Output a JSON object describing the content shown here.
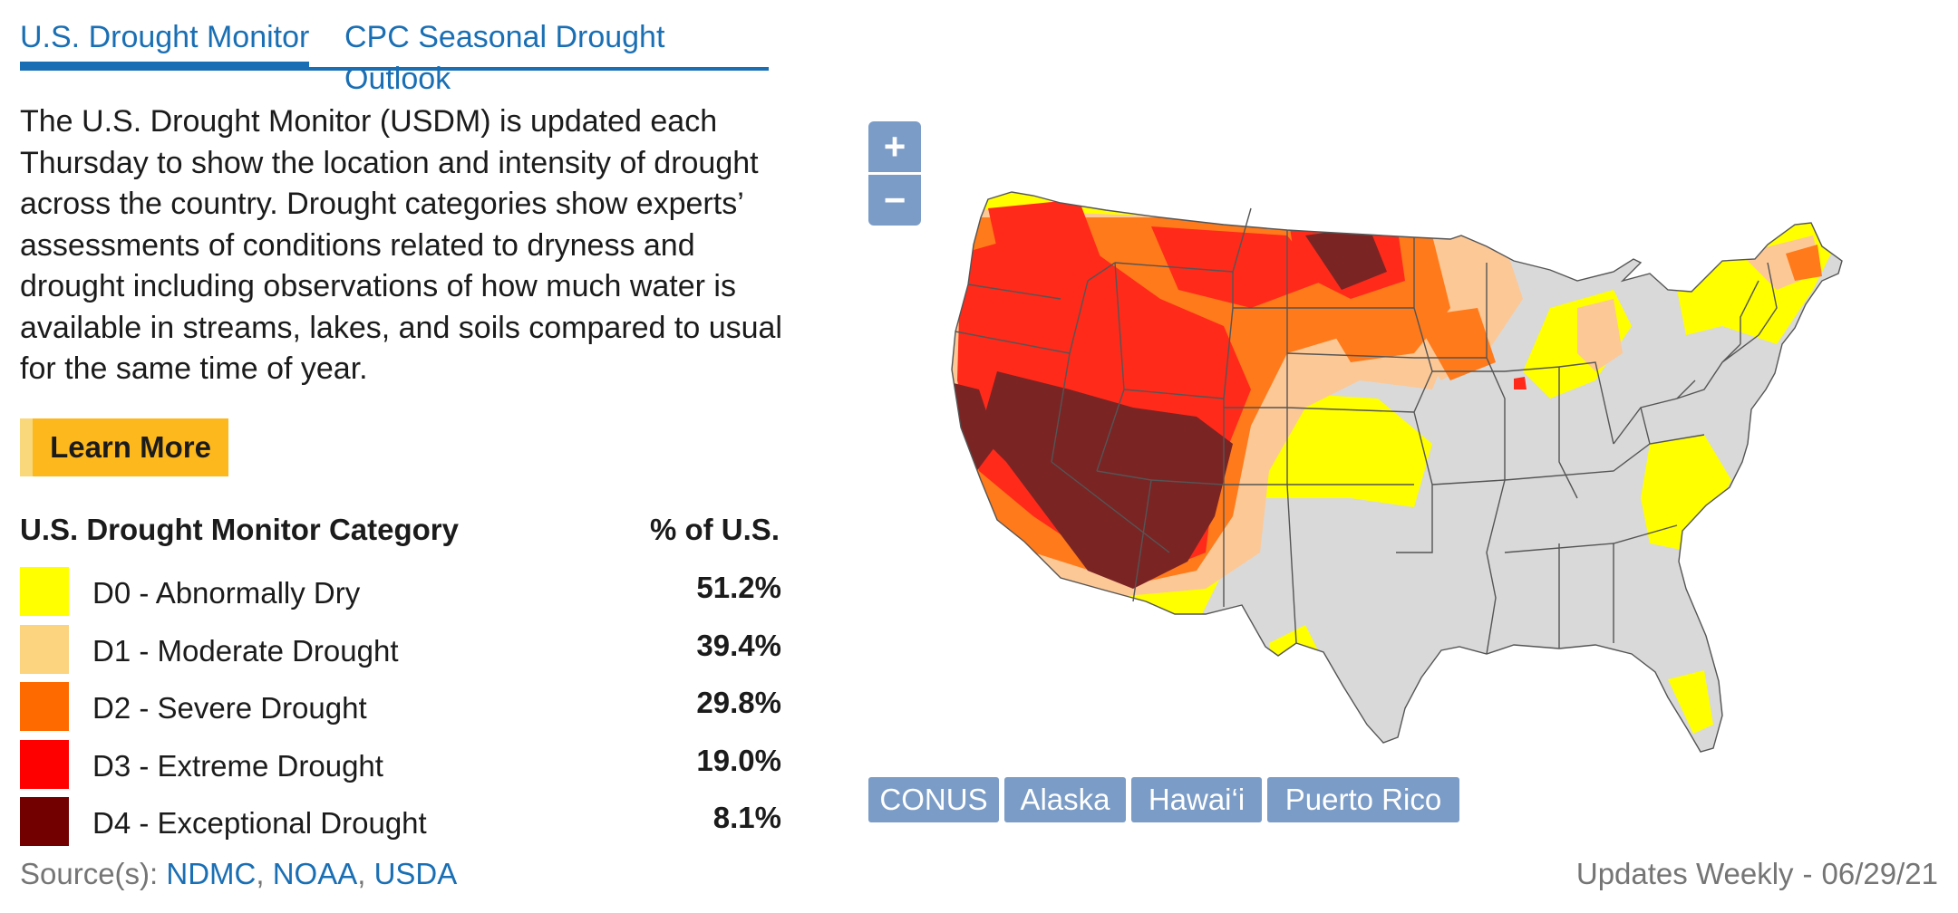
{
  "tabs": {
    "primary": "U.S. Drought Monitor",
    "secondary": "CPC Seasonal Drought Outlook"
  },
  "description": "The U.S. Drought Monitor (USDM) is updated each Thursday to show the location and intensity of drought across the country. Drought categories show experts’ assessments of conditions related to dryness and drought including observations of how much water is available in streams, lakes, and soils compared to usual for the same time of year.",
  "learn_more": "Learn More",
  "legend": {
    "category_header": "U.S. Drought Monitor Category",
    "percent_header": "% of U.S.",
    "items": [
      {
        "label": "D0 - Abnormally Dry",
        "value": "51.2%",
        "color": "#ffff00"
      },
      {
        "label": "D1 - Moderate Drought",
        "value": "39.4%",
        "color": "#fcd37f"
      },
      {
        "label": "D2 - Severe Drought",
        "value": "29.8%",
        "color": "#ff6a00"
      },
      {
        "label": "D3 - Extreme Drought",
        "value": "19.0%",
        "color": "#ff0000"
      },
      {
        "label": "D4 - Exceptional Drought",
        "value": "8.1%",
        "color": "#730000"
      }
    ]
  },
  "source": {
    "prefix": "Source(s): ",
    "links": [
      "NDMC",
      "NOAA",
      "USDA"
    ],
    "separator": ", "
  },
  "updates": {
    "text": "Updates Weekly",
    "separator": "-",
    "date": "06/29/21"
  },
  "map": {
    "zoom_in": "+",
    "zoom_out": "−",
    "region_buttons": [
      "CONUS",
      "Alaska",
      "Hawai‘i",
      "Puerto Rico"
    ],
    "colors": {
      "none": "#d9d9d9",
      "d0": "#ffff00",
      "d1": "#fcc896",
      "d2": "#ff7a1a",
      "d3": "#ff2a1a",
      "d4": "#7a2424",
      "border": "#555555"
    }
  }
}
